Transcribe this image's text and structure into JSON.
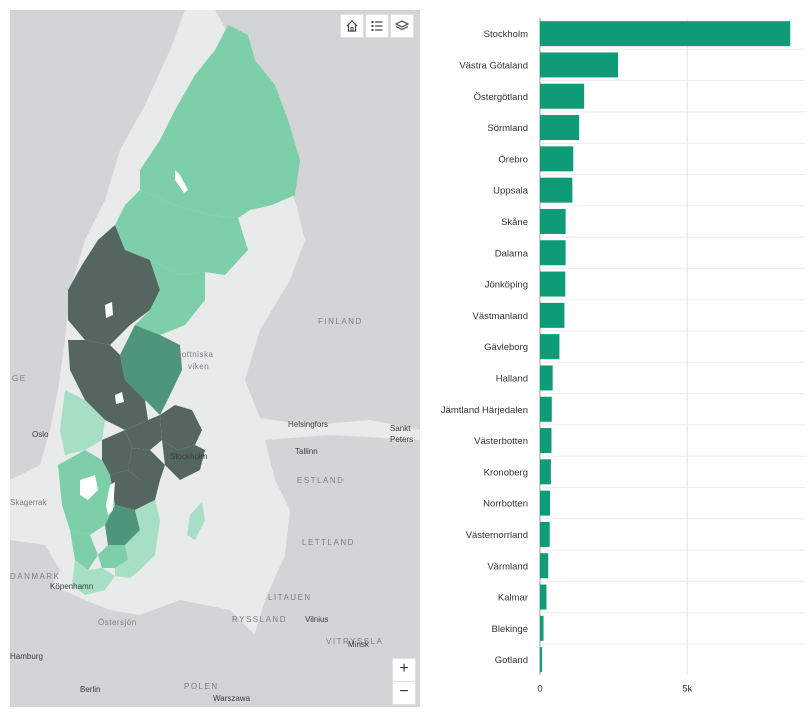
{
  "map": {
    "country_labels": {
      "finland": "FINLAND",
      "estland": "ESTLAND",
      "lettland": "LETTLAND",
      "litauen": "LITAUEN",
      "ryssland": "RYSSLAND",
      "vitryssland": "VITRYSSLA",
      "polen": "POLEN",
      "danmark": "DANMARK",
      "norge_fragment": "GE",
      "skagerrak": "Skagerrak"
    },
    "sea_labels": {
      "bottniska_line1": "Bottniska",
      "bottniska_line2": "viken",
      "ostersjon": "Östersjön"
    },
    "city_labels": {
      "oslo": "Oslo",
      "stockholm": "Stockholm",
      "helsingfors": "Helsingfors",
      "tallinn": "Tallinn",
      "sankt_line1": "Sankt",
      "sankt_line2": "Peters",
      "kopenhamn": "Köpenhamn",
      "vilnius": "Vilnius",
      "minsk": "Minsk",
      "hamburg": "Hamburg",
      "berlin": "Berlin",
      "warszawa": "Warszawa"
    },
    "controls": {
      "zoom_in": "+",
      "zoom_out": "−"
    },
    "tool_icons": [
      "home-icon",
      "legend-list-icon",
      "layers-icon"
    ],
    "colors": {
      "land": "#d2d4d5",
      "water": "#e9eaea",
      "region_light": "#a7dfc5",
      "region_mid": "#7ccfa9",
      "region_dark": "#4f957b",
      "region_darkest": "#54665f"
    }
  },
  "chart_data": {
    "type": "bar",
    "orientation": "horizontal",
    "categories": [
      "Stockholm",
      "Västra Götaland",
      "Östergötland",
      "Sörmland",
      "Örebro",
      "Uppsala",
      "Skåne",
      "Dalarna",
      "Jönköping",
      "Västmanland",
      "Gävleborg",
      "Halland",
      "Jämtland Härjedalen",
      "Västerbotten",
      "Kronoberg",
      "Norrbotten",
      "Västernorrland",
      "Värmland",
      "Kalmar",
      "Blekinge",
      "Gotland"
    ],
    "values": [
      8500,
      2650,
      1500,
      1330,
      1130,
      1100,
      870,
      870,
      860,
      830,
      660,
      430,
      400,
      390,
      370,
      340,
      330,
      280,
      220,
      120,
      70
    ],
    "xlim": [
      0,
      9000
    ],
    "xticks": [
      0,
      5000
    ],
    "xtick_labels": [
      "0",
      "5k"
    ],
    "title": "",
    "xlabel": "",
    "ylabel": "",
    "bar_color": "#0e9c78",
    "grid": true
  }
}
